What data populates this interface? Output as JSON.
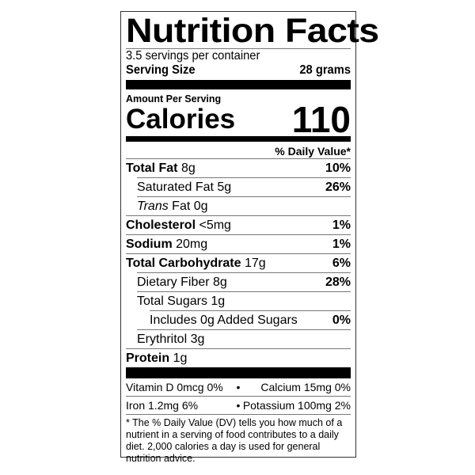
{
  "title": "Nutrition Facts",
  "servings_per_container": "3.5 servings per container",
  "serving_size_label": "Serving Size",
  "serving_size_value": "28 grams",
  "amount_per_serving": "Amount Per Serving",
  "calories_label": "Calories",
  "calories_value": "110",
  "daily_value_header": "% Daily Value*",
  "nutrients": [
    {
      "name": "Total Fat",
      "amount": "8g",
      "dv": "10%",
      "bold": true,
      "indent": 0
    },
    {
      "name": "Saturated Fat",
      "amount": "5g",
      "dv": "26%",
      "bold": false,
      "indent": 1
    },
    {
      "name": "Trans",
      "name_suffix": "Fat",
      "amount": "0g",
      "dv": "",
      "bold": false,
      "indent": 1
    },
    {
      "name": "Cholesterol",
      "amount": "<5mg",
      "dv": "1%",
      "bold": true,
      "indent": 0
    },
    {
      "name": "Sodium",
      "amount": "20mg",
      "dv": "1%",
      "bold": true,
      "indent": 0
    },
    {
      "name": "Total Carbohydrate",
      "amount": "17g",
      "dv": "6%",
      "bold": true,
      "indent": 0
    },
    {
      "name": "Dietary Fiber",
      "amount": "8g",
      "dv": "28%",
      "bold": false,
      "indent": 1
    },
    {
      "name": "Total Sugars",
      "amount": "1g",
      "dv": "",
      "bold": false,
      "indent": 1
    },
    {
      "name": "Includes 0g Added Sugars",
      "amount": "",
      "dv": "0%",
      "bold": false,
      "indent": 2
    },
    {
      "name": "Erythritol",
      "amount": "3g",
      "dv": "",
      "bold": false,
      "indent": 1
    },
    {
      "name": "Protein",
      "amount": "1g",
      "dv": "",
      "bold": true,
      "indent": 0
    }
  ],
  "vitamins": [
    {
      "left": "Vitamin D 0mcg 0%",
      "sep": "•",
      "right": "Calcium 15mg 0%"
    },
    {
      "left": "Iron 1.2mg 6%",
      "sep": "•",
      "right": "Potassium 100mg 2%"
    }
  ],
  "footnote": "* The % Daily Value (DV) tells you how much of a nutrient in a serving of food contributes to a daily diet. 2,000 calories a day is used for general nutrition advice."
}
